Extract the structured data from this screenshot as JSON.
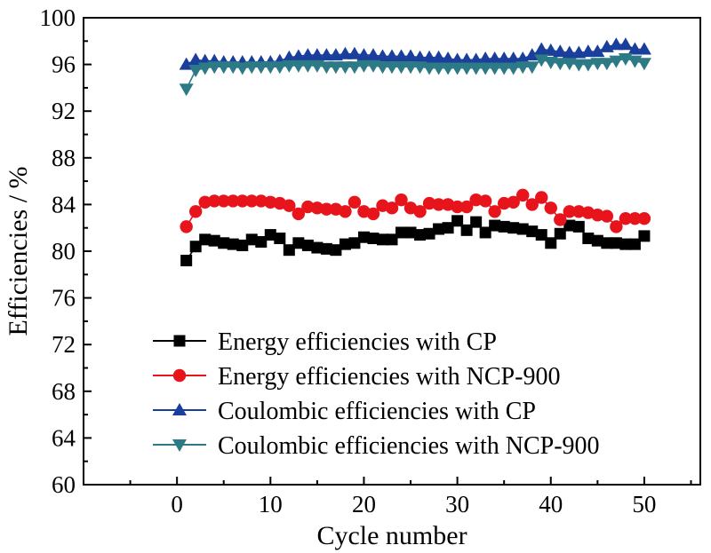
{
  "chart_data": {
    "type": "line",
    "title": "",
    "xlabel": "Cycle number",
    "ylabel": "Efficiencies / %",
    "xlim": [
      -10,
      56
    ],
    "ylim": [
      60,
      100
    ],
    "xticks": [
      0,
      10,
      20,
      30,
      40,
      50
    ],
    "yticks": [
      60,
      64,
      68,
      72,
      76,
      80,
      84,
      88,
      92,
      96,
      100
    ],
    "grid": false,
    "legend_position": "bottom-right",
    "x": [
      1,
      2,
      3,
      4,
      5,
      6,
      7,
      8,
      9,
      10,
      11,
      12,
      13,
      14,
      15,
      16,
      17,
      18,
      19,
      20,
      21,
      22,
      23,
      24,
      25,
      26,
      27,
      28,
      29,
      30,
      31,
      32,
      33,
      34,
      35,
      36,
      37,
      38,
      39,
      40,
      41,
      42,
      43,
      44,
      45,
      46,
      47,
      48,
      49,
      50
    ],
    "series": [
      {
        "name": "Energy efficiencies with CP",
        "color": "#000000",
        "marker": "square",
        "values": [
          79.2,
          80.4,
          81.0,
          80.9,
          80.7,
          80.6,
          80.5,
          81.0,
          80.8,
          81.4,
          81.1,
          80.1,
          80.7,
          80.5,
          80.3,
          80.2,
          80.1,
          80.6,
          80.7,
          81.2,
          81.1,
          81.0,
          81.0,
          81.6,
          81.6,
          81.4,
          81.5,
          81.9,
          82.0,
          82.6,
          81.8,
          82.5,
          81.6,
          82.2,
          82.1,
          82.0,
          81.9,
          81.7,
          81.4,
          80.7,
          81.5,
          82.2,
          82.1,
          81.1,
          80.9,
          80.7,
          80.7,
          80.6,
          80.6,
          81.3
        ]
      },
      {
        "name": "Energy efficiencies with NCP-900",
        "color": "#e8141b",
        "marker": "circle",
        "values": [
          82.1,
          83.4,
          84.2,
          84.3,
          84.3,
          84.3,
          84.3,
          84.3,
          84.3,
          84.2,
          84.1,
          83.9,
          83.2,
          83.8,
          83.7,
          83.6,
          83.6,
          83.4,
          84.2,
          83.4,
          83.2,
          83.9,
          83.7,
          84.4,
          83.7,
          83.4,
          84.1,
          84.0,
          84.0,
          83.8,
          83.8,
          84.4,
          84.3,
          83.4,
          84.1,
          84.2,
          84.8,
          84.0,
          84.6,
          83.7,
          82.7,
          83.4,
          83.4,
          83.3,
          83.1,
          83.0,
          82.1,
          82.8,
          82.8,
          82.8
        ]
      },
      {
        "name": "Coulombic efficiencies with CP",
        "color": "#1a3e9b",
        "marker": "triangle-up",
        "values": [
          96.0,
          96.4,
          96.3,
          96.3,
          96.2,
          96.2,
          96.2,
          96.2,
          96.2,
          96.2,
          96.3,
          96.6,
          96.7,
          96.8,
          96.8,
          96.8,
          96.8,
          96.9,
          96.9,
          96.8,
          96.8,
          96.7,
          96.7,
          96.7,
          96.7,
          96.6,
          96.6,
          96.6,
          96.5,
          96.4,
          96.4,
          96.4,
          96.5,
          96.5,
          96.5,
          96.5,
          96.5,
          96.8,
          97.3,
          97.2,
          97.1,
          97.0,
          97.0,
          97.1,
          97.1,
          97.5,
          97.7,
          97.7,
          97.3,
          97.3
        ]
      },
      {
        "name": "Coulombic efficiencies with NCP-900",
        "color": "#2c7a85",
        "marker": "triangle-down",
        "values": [
          93.9,
          95.5,
          95.7,
          95.8,
          95.8,
          95.8,
          95.7,
          95.8,
          95.8,
          95.8,
          95.8,
          95.9,
          95.9,
          95.9,
          95.9,
          95.8,
          95.8,
          95.8,
          95.8,
          95.9,
          95.9,
          95.8,
          95.8,
          95.8,
          95.8,
          95.8,
          95.7,
          95.7,
          95.7,
          95.7,
          95.7,
          95.7,
          95.7,
          95.7,
          95.7,
          95.7,
          95.8,
          95.8,
          96.4,
          96.2,
          96.1,
          96.1,
          96.0,
          96.0,
          96.1,
          96.1,
          96.3,
          96.5,
          96.3,
          96.1
        ]
      }
    ]
  }
}
